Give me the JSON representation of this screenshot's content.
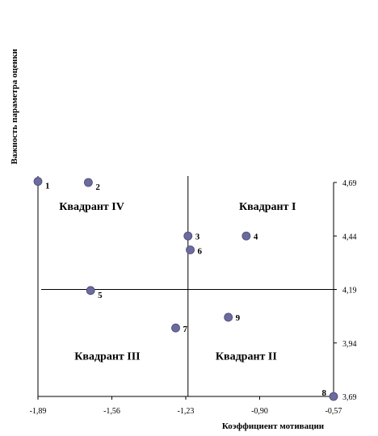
{
  "chart_data": {
    "type": "scatter",
    "xlabel": "Коэффициент мотивации",
    "ylabel": "Важность параметра оценки",
    "xlim": [
      -1.89,
      -0.57
    ],
    "ylim": [
      3.69,
      4.69
    ],
    "x_ticks": [
      "-1,89",
      "-1,56",
      "-1,23",
      "-0,90",
      "-0,57"
    ],
    "y_ticks": [
      "4,69",
      "4,44",
      "4,19",
      "3,94",
      "3,69"
    ],
    "divider_x": -1.22,
    "divider_y": 4.19,
    "grid": false,
    "point_color": "#6b6b9e",
    "quadrants": [
      {
        "label": "Квадрант IV",
        "x": -1.65,
        "y": 4.58
      },
      {
        "label": "Квадрант I",
        "x": -0.865,
        "y": 4.58
      },
      {
        "label": "Квадрант III",
        "x": -1.58,
        "y": 3.88
      },
      {
        "label": "Квадрант II",
        "x": -0.96,
        "y": 3.88
      }
    ],
    "points": [
      {
        "label": "1",
        "x": -1.89,
        "y": 4.695
      },
      {
        "label": "2",
        "x": -1.665,
        "y": 4.69
      },
      {
        "label": "3",
        "x": -1.22,
        "y": 4.44
      },
      {
        "label": "4",
        "x": -0.96,
        "y": 4.44
      },
      {
        "label": "5",
        "x": -1.655,
        "y": 4.185
      },
      {
        "label": "6",
        "x": -1.21,
        "y": 4.375
      },
      {
        "label": "7",
        "x": -1.275,
        "y": 4.01
      },
      {
        "label": "8",
        "x": -0.57,
        "y": 3.69
      },
      {
        "label": "9",
        "x": -1.04,
        "y": 4.06
      }
    ]
  }
}
